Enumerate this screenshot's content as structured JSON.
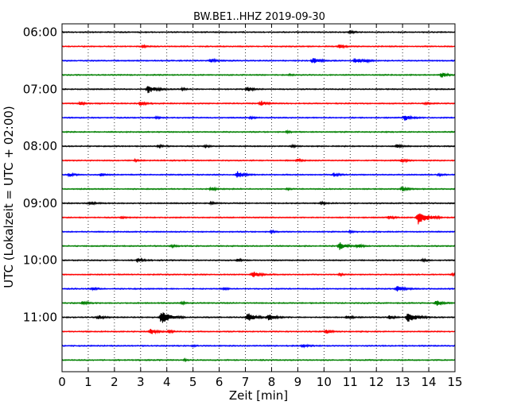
{
  "chart_data": {
    "type": "line",
    "title": "BW.BE1..HHZ 2019-09-30",
    "xlabel": "Zeit  [min]",
    "ylabel": "UTC (Lokalzeit = UTC + 02:00)",
    "xlim": [
      0,
      15
    ],
    "x_ticks": [
      "0",
      "1",
      "2",
      "3",
      "4",
      "5",
      "6",
      "7",
      "8",
      "9",
      "10",
      "11",
      "12",
      "13",
      "14",
      "15"
    ],
    "y_tick_labels": [
      "06:00",
      "07:00",
      "08:00",
      "09:00",
      "10:00",
      "11:00"
    ],
    "grid": "vertical dotted",
    "trace_colors": [
      "#000000",
      "#ff0000",
      "#0000ff",
      "#008000"
    ],
    "traces": [
      {
        "start": "06:00",
        "events": [
          {
            "t": 11.0,
            "amp": 0.4
          }
        ]
      },
      {
        "start": "06:15",
        "events": [
          {
            "t": 10.6,
            "amp": 0.5
          },
          {
            "t": 3.1,
            "amp": 0.3
          }
        ]
      },
      {
        "start": "06:30",
        "events": [
          {
            "t": 5.7,
            "amp": 0.6
          },
          {
            "t": 9.6,
            "amp": 0.9
          },
          {
            "t": 11.2,
            "amp": 0.8
          },
          {
            "t": 11.6,
            "amp": 0.4
          }
        ]
      },
      {
        "start": "06:45",
        "events": [
          {
            "t": 14.5,
            "amp": 0.7
          },
          {
            "t": 8.7,
            "amp": 0.2
          }
        ]
      },
      {
        "start": "07:00",
        "events": [
          {
            "t": 3.3,
            "amp": 1.2
          },
          {
            "t": 7.1,
            "amp": 0.7
          },
          {
            "t": 4.6,
            "amp": 0.3
          }
        ]
      },
      {
        "start": "07:15",
        "events": [
          {
            "t": 3.0,
            "amp": 0.7
          },
          {
            "t": 7.6,
            "amp": 0.8
          },
          {
            "t": 0.7,
            "amp": 0.4
          },
          {
            "t": 13.9,
            "amp": 0.3
          }
        ]
      },
      {
        "start": "07:30",
        "events": [
          {
            "t": 13.1,
            "amp": 0.8
          },
          {
            "t": 3.6,
            "amp": 0.3
          },
          {
            "t": 7.2,
            "amp": 0.3
          }
        ]
      },
      {
        "start": "07:45",
        "events": [
          {
            "t": 8.6,
            "amp": 0.25
          }
        ]
      },
      {
        "start": "08:00",
        "events": [
          {
            "t": 3.7,
            "amp": 0.4
          },
          {
            "t": 5.5,
            "amp": 0.3
          },
          {
            "t": 12.8,
            "amp": 0.5
          },
          {
            "t": 8.8,
            "amp": 0.3
          }
        ]
      },
      {
        "start": "08:15",
        "events": [
          {
            "t": 9.0,
            "amp": 0.4
          },
          {
            "t": 13.0,
            "amp": 0.5
          },
          {
            "t": 2.8,
            "amp": 0.3
          }
        ]
      },
      {
        "start": "08:30",
        "events": [
          {
            "t": 6.7,
            "amp": 1.0
          },
          {
            "t": 0.3,
            "amp": 0.5
          },
          {
            "t": 10.4,
            "amp": 0.6
          },
          {
            "t": 1.5,
            "amp": 0.4
          },
          {
            "t": 14.4,
            "amp": 0.3
          }
        ]
      },
      {
        "start": "08:45",
        "events": [
          {
            "t": 5.7,
            "amp": 0.6
          },
          {
            "t": 13.0,
            "amp": 0.7
          },
          {
            "t": 8.6,
            "amp": 0.2
          }
        ]
      },
      {
        "start": "09:00",
        "events": [
          {
            "t": 1.1,
            "amp": 0.5
          },
          {
            "t": 5.7,
            "amp": 0.3
          },
          {
            "t": 9.9,
            "amp": 0.4
          }
        ]
      },
      {
        "start": "09:15",
        "events": [
          {
            "t": 13.6,
            "amp": 2.0
          },
          {
            "t": 12.5,
            "amp": 0.5
          },
          {
            "t": 2.3,
            "amp": 0.3
          }
        ]
      },
      {
        "start": "09:30",
        "events": [
          {
            "t": 8.0,
            "amp": 0.3
          },
          {
            "t": 11.0,
            "amp": 0.3
          }
        ]
      },
      {
        "start": "09:45",
        "events": [
          {
            "t": 10.6,
            "amp": 1.1
          },
          {
            "t": 11.3,
            "amp": 0.6
          },
          {
            "t": 4.2,
            "amp": 0.3
          }
        ]
      },
      {
        "start": "10:00",
        "events": [
          {
            "t": 2.9,
            "amp": 0.6
          },
          {
            "t": 6.7,
            "amp": 0.4
          },
          {
            "t": 13.8,
            "amp": 0.3
          }
        ]
      },
      {
        "start": "10:15",
        "events": [
          {
            "t": 7.3,
            "amp": 1.0
          },
          {
            "t": 14.9,
            "amp": 0.3
          },
          {
            "t": 10.6,
            "amp": 0.3
          }
        ]
      },
      {
        "start": "10:30",
        "events": [
          {
            "t": 12.8,
            "amp": 0.9
          },
          {
            "t": 1.2,
            "amp": 0.4
          },
          {
            "t": 6.2,
            "amp": 0.3
          }
        ]
      },
      {
        "start": "10:45",
        "events": [
          {
            "t": 14.3,
            "amp": 0.8
          },
          {
            "t": 0.8,
            "amp": 0.5
          },
          {
            "t": 4.6,
            "amp": 0.3
          }
        ]
      },
      {
        "start": "11:00",
        "events": [
          {
            "t": 3.8,
            "amp": 1.9
          },
          {
            "t": 7.1,
            "amp": 1.3
          },
          {
            "t": 13.2,
            "amp": 1.6
          },
          {
            "t": 7.9,
            "amp": 1.0
          },
          {
            "t": 1.4,
            "amp": 0.6
          },
          {
            "t": 10.9,
            "amp": 0.6
          },
          {
            "t": 12.5,
            "amp": 0.5
          }
        ]
      },
      {
        "start": "11:15",
        "events": [
          {
            "t": 3.4,
            "amp": 0.8
          },
          {
            "t": 10.1,
            "amp": 0.6
          },
          {
            "t": 4.1,
            "amp": 0.4
          }
        ]
      },
      {
        "start": "11:30",
        "events": [
          {
            "t": 9.2,
            "amp": 0.5
          },
          {
            "t": 5.0,
            "amp": 0.2
          }
        ]
      },
      {
        "start": "11:45",
        "events": [
          {
            "t": 4.7,
            "amp": 0.2
          }
        ]
      }
    ]
  }
}
